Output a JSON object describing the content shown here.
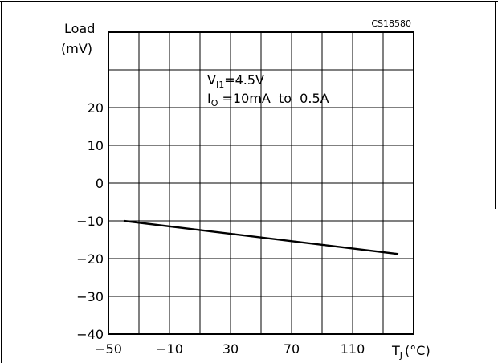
{
  "chart_data": {
    "type": "line",
    "code": "CS18580",
    "ylabel_line1": "Load",
    "ylabel_line2": "(mV)",
    "xlabel_main": "T",
    "xlabel_sub": "J",
    "xlabel_unit": "(°C)",
    "condition1": {
      "main": "V",
      "sub": "I1",
      "rest": "=4.5V"
    },
    "condition2": {
      "main": "I",
      "sub": "O",
      "rest": " =10mA  to  0.5A"
    },
    "xlim": [
      -50,
      150
    ],
    "ylim": [
      -40,
      40
    ],
    "x_ticks": [
      {
        "value": -50,
        "label": "−50"
      },
      {
        "value": -10,
        "label": "−10"
      },
      {
        "value": 30,
        "label": "30"
      },
      {
        "value": 70,
        "label": "70"
      },
      {
        "value": 110,
        "label": "110"
      }
    ],
    "y_ticks": [
      {
        "value": 20,
        "label": "20"
      },
      {
        "value": 10,
        "label": "10"
      },
      {
        "value": 0,
        "label": "0"
      },
      {
        "value": -10,
        "label": "−10"
      },
      {
        "value": -20,
        "label": "−20"
      },
      {
        "value": -30,
        "label": "−30"
      },
      {
        "value": -40,
        "label": "−40"
      }
    ],
    "grid": true,
    "series": [
      {
        "x": [
          -40,
          140
        ],
        "y": [
          -10,
          -18.8
        ]
      }
    ]
  }
}
